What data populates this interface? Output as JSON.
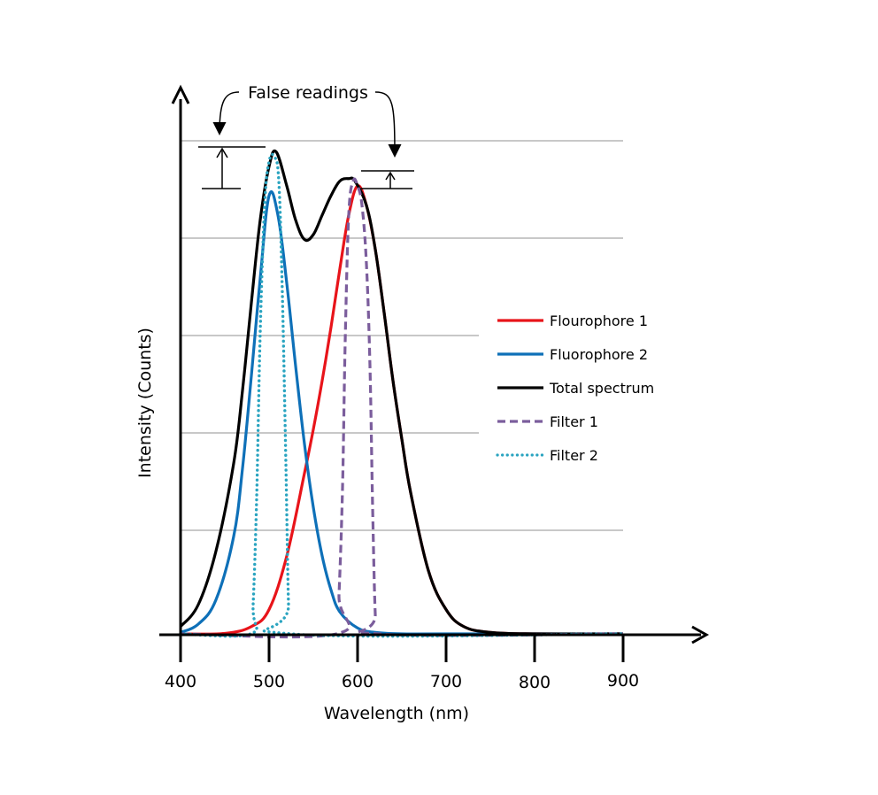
{
  "chart_data": {
    "type": "line",
    "title": "",
    "xlabel": "Wavelength (nm)",
    "ylabel": "Intensity (Counts)",
    "xlim": [
      400,
      900
    ],
    "ylim": [
      0,
      100
    ],
    "x_ticks": [
      400,
      500,
      600,
      700,
      800,
      900
    ],
    "x_tick_labels": [
      "400",
      "500",
      "600",
      "700",
      "800",
      "900"
    ],
    "y_gridlines": [
      20,
      40,
      60,
      80,
      100
    ],
    "grid": true,
    "legend_position": "right",
    "series": [
      {
        "name": "Flourophore 1",
        "color": "#e8141a",
        "style": "solid",
        "x": [
          400,
          450,
          480,
          500,
          520,
          540,
          550,
          560,
          570,
          580,
          590,
          600,
          610,
          620,
          630,
          640,
          650,
          660,
          680,
          700,
          720,
          750,
          800,
          900
        ],
        "y": [
          0,
          0.1,
          1.5,
          5,
          16,
          33,
          42,
          52,
          63,
          75,
          86,
          92,
          88,
          79,
          66,
          52,
          40,
          29,
          13,
          5,
          1.5,
          0.3,
          0,
          0
        ]
      },
      {
        "name": "Fluorophore 2",
        "color": "#0e70b8",
        "style": "solid",
        "x": [
          400,
          420,
          440,
          460,
          470,
          480,
          490,
          500,
          510,
          520,
          530,
          540,
          550,
          560,
          570,
          580,
          600,
          620,
          650,
          700,
          900
        ],
        "y": [
          0.3,
          2,
          7,
          20,
          34,
          53,
          73,
          90,
          86,
          72,
          55,
          39,
          26,
          16,
          9,
          4.5,
          1.2,
          0.3,
          0,
          0,
          0
        ]
      },
      {
        "name": "Total spectrum",
        "color": "#000000",
        "style": "solid",
        "x": [
          400,
          420,
          440,
          460,
          470,
          480,
          490,
          500,
          508,
          520,
          530,
          540,
          550,
          560,
          570,
          580,
          590,
          597,
          610,
          620,
          630,
          640,
          650,
          660,
          680,
          700,
          720,
          750,
          800,
          900
        ],
        "y": [
          1.5,
          6,
          17,
          35,
          50,
          68,
          85,
          96,
          99,
          92,
          85,
          81,
          82,
          86,
          90,
          93,
          93.5,
          93,
          88,
          79,
          66,
          52,
          40,
          29,
          13,
          5,
          1.5,
          0.3,
          0,
          0
        ]
      },
      {
        "name": "Filter 1",
        "color": "#7b5d9c",
        "style": "dashed",
        "x": [
          400,
          576,
          579,
          583,
          586,
          590,
          595,
          600,
          605,
          610,
          614,
          617,
          620,
          623,
          900
        ],
        "y": [
          0,
          0,
          8,
          30,
          60,
          86,
          93,
          92,
          88,
          76,
          55,
          26,
          4,
          0,
          0
        ]
      },
      {
        "name": "Filter 2",
        "color": "#2aa4c0",
        "style": "dotted",
        "x": [
          400,
          479,
          482,
          486,
          490,
          495,
          500,
          506,
          511,
          515,
          519,
          522,
          525,
          900
        ],
        "y": [
          0,
          0,
          6,
          28,
          62,
          88,
          97,
          98,
          93,
          70,
          35,
          6,
          0,
          0
        ]
      }
    ],
    "annotations": {
      "false_readings": "False readings"
    }
  }
}
